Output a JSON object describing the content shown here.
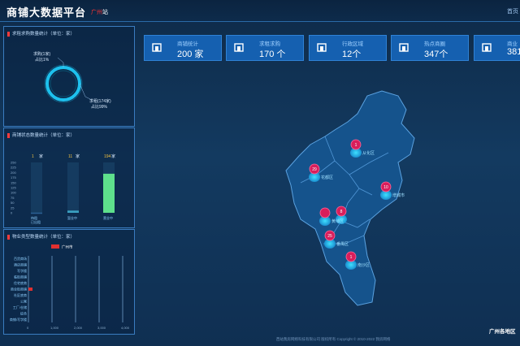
{
  "header": {
    "title": "商铺大数据平台",
    "city_prefix": "广州",
    "city_suffix": "站",
    "home_link": "首页"
  },
  "stats": [
    {
      "label": "商铺统计",
      "value": "200 家",
      "icon": "store-icon"
    },
    {
      "label": "求租求购",
      "value": "170 个",
      "icon": "house-icon"
    },
    {
      "label": "行政区域",
      "value": "12个",
      "icon": "map-region-icon"
    },
    {
      "label": "热点商圈",
      "value": "347个",
      "icon": "eye-icon"
    },
    {
      "label": "商业",
      "value": "381",
      "icon": "location-pin-icon"
    }
  ],
  "panel_donut": {
    "title": "求租求购数量统计（单位：家）",
    "label_small_1": "求购(1家)",
    "label_small_2": "占比1%",
    "label_big_1": "求租(174家)",
    "label_big_2": "占比99%",
    "ring_color": "#1fd0ff"
  },
  "panel_status": {
    "title": "商铺状态数量统计（单位：家）",
    "bars": [
      {
        "count": "1",
        "unit": "家",
        "label1": "待租",
        "label2": "已出租",
        "value": 1,
        "color": "#2a5f93"
      },
      {
        "count": "11",
        "unit": "家",
        "label1": "",
        "label2": "暂业中",
        "value": 11,
        "color": "#3aa0c0"
      },
      {
        "count": "194",
        "unit": "家",
        "label1": "",
        "label2": "营业中",
        "value": 194,
        "color": "#5ee08c"
      }
    ],
    "y_ticks": [
      "250",
      "225",
      "200",
      "175",
      "150",
      "125",
      "100",
      "75",
      "50",
      "25",
      "0"
    ],
    "count_colors": [
      "#f0c040",
      "#f0c040",
      "#f0c040"
    ]
  },
  "panel_property": {
    "title": "物业类型数量统计（单位：家）",
    "legend": "广州市",
    "legend_color": "#e03030",
    "categories": [
      "百货商场",
      "酒店商铺",
      "写字楼",
      "临街商铺",
      "住宅底商",
      "商业街商铺",
      "社区底商",
      "公寓",
      "工厂/仓储",
      "综合",
      "商铺/写字楼"
    ],
    "values": [
      0,
      0,
      0,
      0,
      0,
      3,
      0,
      0,
      0,
      0,
      0
    ],
    "x_ticks": [
      "0",
      "1,000",
      "2,000",
      "3,000",
      "4,000"
    ]
  },
  "map": {
    "label": "广州各地区",
    "markers": [
      {
        "count": "1",
        "name": "从化区"
      },
      {
        "count": "29",
        "name": "花都区"
      },
      {
        "count": "10",
        "name": "增城市"
      },
      {
        "count": "8",
        "name": ""
      },
      {
        "count": "25",
        "name": "番禺区"
      },
      {
        "count": "1",
        "name": "南沙区"
      },
      {
        "count": "",
        "name": "黄埔区"
      }
    ]
  },
  "footer": "西站我房网络科技有限公司 版权所有 Copyright © 2010-2022 我房网络"
}
